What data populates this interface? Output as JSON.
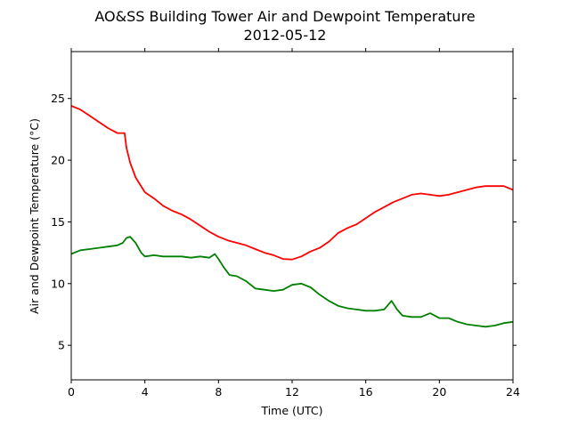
{
  "chart_data": {
    "type": "line",
    "title": "AO&SS Building Tower Air and Dewpoint Temperature",
    "subtitle": "2012-05-12",
    "xlabel": "Time (UTC)",
    "ylabel": "Air and Dewpoint Temperature (°C)",
    "xlim": [
      0,
      24
    ],
    "ylim": [
      2.2,
      28.8
    ],
    "xticks": [
      0,
      4,
      8,
      12,
      16,
      20,
      24
    ],
    "yticks": [
      5,
      10,
      15,
      20,
      25
    ],
    "grid": false,
    "legend": "none",
    "series": [
      {
        "color": "#ff0000",
        "x": [
          0,
          0.5,
          1.0,
          1.5,
          2.0,
          2.5,
          2.9,
          3.0,
          3.2,
          3.5,
          4.0,
          4.5,
          5.0,
          5.5,
          6.0,
          6.5,
          7.0,
          7.5,
          8.0,
          8.5,
          9.0,
          9.5,
          10.0,
          10.5,
          11.0,
          11.5,
          12.0,
          12.5,
          13.0,
          13.5,
          14.0,
          14.5,
          15.0,
          15.5,
          16.0,
          16.5,
          17.0,
          17.5,
          18.0,
          18.5,
          19.0,
          19.5,
          20.0,
          20.5,
          21.0,
          21.5,
          22.0,
          22.5,
          23.0,
          23.5,
          24.0
        ],
        "y": [
          24.4,
          24.1,
          23.6,
          23.1,
          22.6,
          22.2,
          22.2,
          21.0,
          19.8,
          18.6,
          17.4,
          16.9,
          16.3,
          15.9,
          15.6,
          15.2,
          14.7,
          14.2,
          13.8,
          13.5,
          13.3,
          13.1,
          12.8,
          12.5,
          12.3,
          12.0,
          11.95,
          12.2,
          12.6,
          12.9,
          13.4,
          14.1,
          14.5,
          14.8,
          15.3,
          15.8,
          16.2,
          16.6,
          16.9,
          17.2,
          17.3,
          17.2,
          17.1,
          17.2,
          17.4,
          17.6,
          17.8,
          17.9,
          17.9,
          17.9,
          17.6
        ]
      },
      {
        "color": "#008000",
        "x": [
          0,
          0.5,
          1.0,
          1.5,
          2.0,
          2.5,
          2.8,
          3.0,
          3.2,
          3.5,
          3.8,
          4.0,
          4.5,
          5.0,
          5.5,
          6.0,
          6.5,
          7.0,
          7.5,
          7.8,
          8.0,
          8.3,
          8.6,
          9.0,
          9.5,
          10.0,
          10.5,
          11.0,
          11.5,
          12.0,
          12.5,
          13.0,
          13.5,
          14.0,
          14.5,
          15.0,
          15.5,
          16.0,
          16.5,
          17.0,
          17.4,
          17.7,
          18.0,
          18.5,
          19.0,
          19.5,
          20.0,
          20.5,
          21.0,
          21.5,
          22.0,
          22.5,
          23.0,
          23.5,
          24.0
        ],
        "y": [
          12.4,
          12.7,
          12.8,
          12.9,
          13.0,
          13.1,
          13.3,
          13.7,
          13.8,
          13.3,
          12.5,
          12.2,
          12.3,
          12.2,
          12.2,
          12.2,
          12.1,
          12.2,
          12.1,
          12.4,
          12.0,
          11.3,
          10.7,
          10.6,
          10.2,
          9.6,
          9.5,
          9.4,
          9.5,
          9.9,
          10.0,
          9.7,
          9.1,
          8.6,
          8.2,
          8.0,
          7.9,
          7.8,
          7.8,
          7.9,
          8.6,
          7.9,
          7.4,
          7.3,
          7.3,
          7.6,
          7.2,
          7.2,
          6.9,
          6.7,
          6.6,
          6.5,
          6.6,
          6.8,
          6.9
        ]
      }
    ]
  }
}
